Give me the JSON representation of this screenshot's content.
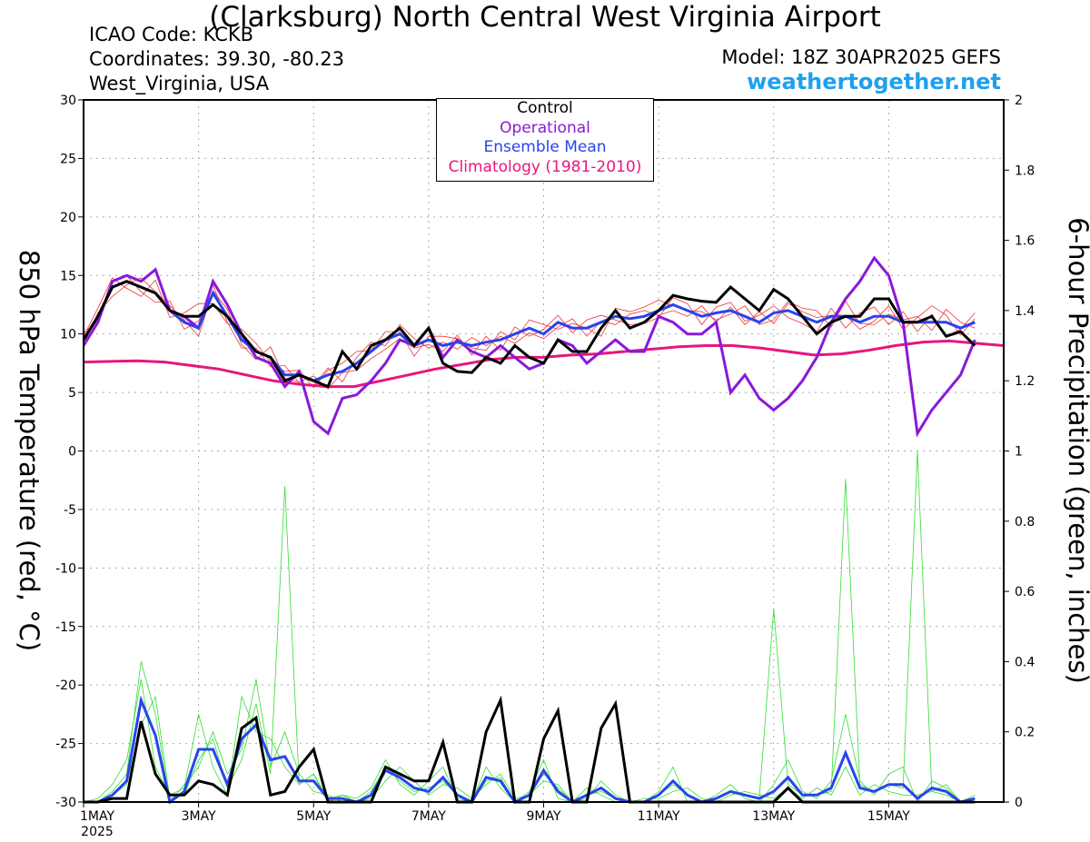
{
  "header": {
    "title": "(Clarksburg) North Central West Virginia Airport",
    "icao": "ICAO Code: KCKB",
    "coordinates": "Coordinates: 39.30, -80.23",
    "region": "West_Virginia, USA",
    "model": "Model: 18Z 30APR2025 GEFS",
    "brand": "weathertogether.net"
  },
  "colors": {
    "members_temp": "#ee3333",
    "members_precip": "#33dd33",
    "control": "#000000",
    "operational": "#8a18d8",
    "ensemble_mean": "#2844ee",
    "climatology": "#e8157e",
    "brand": "#1ea0ee"
  },
  "chart_data": {
    "type": "line",
    "xlabel": "",
    "ylabel": "850 hPa Temperature (red, °C)",
    "y2label": "6-hour Precipitation (green, inches)",
    "ylim": [
      -30,
      30
    ],
    "y2lim": [
      0,
      2
    ],
    "yticks": [
      "30",
      "25",
      "20",
      "15",
      "10",
      "5",
      "0",
      "-5",
      "-10",
      "-15",
      "-20",
      "-25",
      "-30"
    ],
    "y2ticks": [
      "2",
      "1.8",
      "1.6",
      "1.4",
      "1.2",
      "1",
      "0.8",
      "0.6",
      "0.4",
      "0.2",
      "0"
    ],
    "x_start_day": 1,
    "x_end_day": 17,
    "x_step_hours": 6,
    "xtick_labels": [
      "1MAY",
      "3MAY",
      "5MAY",
      "7MAY",
      "9MAY",
      "11MAY",
      "13MAY",
      "15MAY"
    ],
    "xtick_days": [
      1,
      3,
      5,
      7,
      9,
      11,
      13,
      15
    ],
    "x_year_label": "2025",
    "grid": true,
    "legend_placement": "top-center",
    "legend": [
      "Control",
      "Operational",
      "Ensemble Mean",
      "Climatology (1981-2010)"
    ],
    "series": [
      {
        "name": "Control",
        "axis": "temp",
        "values": [
          9.5,
          11.5,
          14.0,
          14.5,
          14.0,
          13.5,
          12.0,
          11.5,
          11.5,
          12.5,
          11.5,
          10.0,
          8.5,
          8.0,
          6.0,
          6.5,
          6.0,
          5.5,
          8.5,
          7.0,
          9.0,
          9.5,
          10.5,
          9.0,
          10.5,
          7.5,
          6.8,
          6.7,
          8.0,
          7.5,
          9.0,
          8.0,
          7.5,
          9.5,
          8.5,
          8.5,
          10.5,
          12.0,
          10.5,
          11.0,
          12.0,
          13.3,
          13.0,
          12.8,
          12.7,
          14.0,
          13.0,
          12.0,
          13.8,
          13.0,
          11.5,
          10.0,
          11.0,
          11.5,
          11.5,
          13.0,
          13.0,
          11.0,
          11.0,
          11.5,
          9.8,
          10.2,
          9.0
        ]
      },
      {
        "name": "Operational",
        "axis": "temp",
        "values": [
          9.0,
          11.0,
          14.5,
          15.0,
          14.5,
          15.5,
          12.0,
          11.5,
          10.5,
          14.5,
          12.5,
          10.0,
          8.0,
          7.5,
          5.5,
          6.8,
          2.5,
          1.5,
          4.5,
          4.8,
          6.0,
          7.5,
          9.5,
          9.0,
          10.5,
          8.0,
          9.5,
          8.5,
          8.0,
          9.0,
          8.0,
          7.0,
          7.5,
          9.5,
          9.0,
          7.5,
          8.5,
          9.5,
          8.5,
          8.5,
          11.5,
          11.0,
          10.0,
          10.0,
          11.0,
          5.0,
          6.5,
          4.5,
          3.5,
          4.5,
          6.0,
          8.0,
          11.0,
          13.0,
          14.5,
          16.5,
          15.0,
          11.0,
          1.5,
          3.5,
          5.0,
          6.5,
          9.5
        ]
      },
      {
        "name": "Ensemble Mean",
        "axis": "temp",
        "values": [
          9.5,
          11.5,
          14.0,
          14.5,
          14.0,
          13.5,
          12.0,
          11.0,
          10.5,
          13.5,
          11.5,
          9.5,
          8.5,
          8.0,
          6.5,
          6.5,
          6.0,
          6.5,
          6.8,
          7.5,
          8.5,
          9.5,
          10.0,
          9.0,
          9.5,
          9.0,
          9.3,
          9.0,
          9.3,
          9.5,
          10.0,
          10.5,
          10.0,
          11.0,
          10.5,
          10.5,
          11.0,
          11.5,
          11.3,
          11.5,
          12.0,
          12.5,
          12.0,
          11.5,
          11.8,
          12.0,
          11.5,
          11.0,
          11.8,
          12.0,
          11.5,
          11.0,
          11.5,
          11.5,
          11.0,
          11.5,
          11.5,
          11.0,
          11.0,
          11.0,
          11.0,
          10.5,
          11.0
        ]
      },
      {
        "name": "Climatology (1981-2010)",
        "axis": "temp",
        "values": [
          7.6,
          7.65,
          7.7,
          7.6,
          7.3,
          7.0,
          6.5,
          6.0,
          5.7,
          5.5,
          5.5,
          6.0,
          6.5,
          7.0,
          7.4,
          7.8,
          8.0,
          8.0,
          8.2,
          8.3,
          8.5,
          8.7,
          8.9,
          9.0,
          9.0,
          8.8,
          8.5,
          8.2,
          8.3,
          8.6,
          9.0,
          9.3,
          9.4,
          9.2,
          9.0
        ]
      },
      {
        "name": "Control Precip",
        "axis": "precip",
        "values": [
          0.0,
          0.0,
          0.01,
          0.01,
          0.23,
          0.08,
          0.02,
          0.02,
          0.06,
          0.05,
          0.02,
          0.21,
          0.24,
          0.02,
          0.03,
          0.1,
          0.15,
          0.0,
          0.0,
          0.0,
          0.0,
          0.1,
          0.08,
          0.06,
          0.06,
          0.17,
          0.0,
          0.0,
          0.2,
          0.29,
          0.0,
          0.0,
          0.18,
          0.26,
          0.0,
          0.0,
          0.21,
          0.28,
          0.0,
          0.0,
          0.0,
          0.0,
          0.0,
          0.0,
          0.0,
          0.0,
          0.0,
          0.0,
          0.0,
          0.04,
          0.0,
          0.0,
          0.0,
          0.0,
          0.0,
          0.0,
          0.0,
          0.0,
          0.0,
          0.0,
          0.0,
          0.0,
          0.0
        ]
      },
      {
        "name": "Ensemble Mean Precip",
        "axis": "precip",
        "values": [
          0.0,
          0.0,
          0.02,
          0.06,
          0.29,
          0.19,
          0.0,
          0.03,
          0.15,
          0.15,
          0.05,
          0.18,
          0.22,
          0.12,
          0.13,
          0.06,
          0.06,
          0.01,
          0.01,
          0.0,
          0.02,
          0.09,
          0.07,
          0.04,
          0.03,
          0.07,
          0.02,
          0.0,
          0.07,
          0.06,
          0.0,
          0.02,
          0.09,
          0.03,
          0.0,
          0.02,
          0.04,
          0.01,
          0.0,
          0.0,
          0.02,
          0.06,
          0.02,
          0.0,
          0.01,
          0.03,
          0.02,
          0.01,
          0.03,
          0.07,
          0.02,
          0.02,
          0.04,
          0.14,
          0.04,
          0.03,
          0.05,
          0.05,
          0.01,
          0.04,
          0.03,
          0.0,
          0.01
        ]
      },
      {
        "name": "Member Temp",
        "axis": "temp",
        "members": [
          [
            9.8,
            12.2,
            14.8,
            13.9,
            13.2,
            14.6,
            11.4,
            11.8,
            12.6,
            12.6,
            10.9,
            10.4,
            9.2,
            7.6,
            6.8,
            6.9,
            5.4,
            6.9,
            7.5,
            8.5,
            8.6,
            10.2,
            10.2,
            8.1,
            9.8,
            9.8,
            9.6,
            8.8,
            8.6,
            10.2,
            9.5,
            11.2,
            10.8,
            10.4,
            10.9,
            10.5,
            9.8,
            12.2,
            11.9,
            12.3,
            12.9,
            12.4,
            12.0,
            11.9,
            11.2,
            11.7,
            12.4,
            10.8,
            11.2,
            12.8,
            12.2,
            12.0,
            10.6,
            12.8,
            10.9,
            10.8,
            11.7,
            11.2,
            11.5,
            10.3,
            12.1,
            11.0,
            10.5
          ],
          [
            9.1,
            11.8,
            13.2,
            14.2,
            14.8,
            13.6,
            12.4,
            11.2,
            9.8,
            13.7,
            12.1,
            9.1,
            7.8,
            8.9,
            6.2,
            5.9,
            6.4,
            5.3,
            6.7,
            6.9,
            7.9,
            8.7,
            9.6,
            8.8,
            9.1,
            8.5,
            9.9,
            8.2,
            9.8,
            8.6,
            10.6,
            9.8,
            10.4,
            11.6,
            10.1,
            11.2,
            11.6,
            11.2,
            10.8,
            10.9,
            11.4,
            13.1,
            12.6,
            10.8,
            12.3,
            12.7,
            11.1,
            11.6,
            12.4,
            11.4,
            10.9,
            10.2,
            12.2,
            10.5,
            11.8,
            12.3,
            10.8,
            11.9,
            10.2,
            11.7,
            9.8,
            10.4,
            11.8
          ],
          [
            10.1,
            11.1,
            14.4,
            15.0,
            13.6,
            12.7,
            12.8,
            10.4,
            11.1,
            14.2,
            11.0,
            8.8,
            8.8,
            7.2,
            7.3,
            5.8,
            5.6,
            7.1,
            5.9,
            8.0,
            9.3,
            9.0,
            10.8,
            9.6,
            8.8,
            9.3,
            8.7,
            9.7,
            9.0,
            9.8,
            9.2,
            10.1,
            9.6,
            10.6,
            11.3,
            9.8,
            11.1,
            10.8,
            11.7,
            12.0,
            11.6,
            12.0,
            11.5,
            12.4,
            11.0,
            12.3,
            10.8,
            11.9,
            10.9,
            12.6,
            11.9,
            11.4,
            11.6,
            11.6,
            10.4,
            11.1,
            12.4,
            10.4,
            11.4,
            12.4,
            11.6,
            9.9,
            11.3
          ]
        ]
      },
      {
        "name": "Member Precip",
        "axis": "precip",
        "members": [
          [
            0.0,
            0.01,
            0.05,
            0.12,
            0.35,
            0.1,
            0.02,
            0.04,
            0.25,
            0.1,
            0.02,
            0.3,
            0.2,
            0.18,
            0.1,
            0.05,
            0.08,
            0.0,
            0.02,
            0.01,
            0.04,
            0.12,
            0.05,
            0.02,
            0.06,
            0.1,
            0.01,
            0.0,
            0.1,
            0.04,
            0.0,
            0.03,
            0.12,
            0.01,
            0.0,
            0.04,
            0.02,
            0.0,
            0.0,
            0.0,
            0.03,
            0.1,
            0.0,
            0.0,
            0.02,
            0.05,
            0.01,
            0.0,
            0.05,
            0.12,
            0.03,
            0.01,
            0.06,
            0.25,
            0.06,
            0.02,
            0.08,
            0.1,
            0.0,
            0.06,
            0.04,
            0.0,
            0.02
          ],
          [
            0.0,
            0.0,
            0.03,
            0.08,
            0.4,
            0.25,
            0.0,
            0.05,
            0.1,
            0.2,
            0.08,
            0.15,
            0.35,
            0.1,
            0.2,
            0.08,
            0.03,
            0.02,
            0.0,
            0.0,
            0.01,
            0.06,
            0.1,
            0.06,
            0.02,
            0.05,
            0.04,
            0.01,
            0.05,
            0.08,
            0.01,
            0.02,
            0.06,
            0.05,
            0.0,
            0.01,
            0.06,
            0.02,
            0.0,
            0.01,
            0.01,
            0.03,
            0.04,
            0.01,
            0.0,
            0.02,
            0.03,
            0.02,
            0.01,
            0.04,
            0.01,
            0.04,
            0.02,
            0.1,
            0.02,
            0.05,
            0.03,
            0.02,
            0.02,
            0.03,
            0.05,
            0.0,
            0.0
          ],
          [
            0.0,
            0.0,
            0.02,
            0.05,
            0.22,
            0.3,
            0.01,
            0.02,
            0.12,
            0.18,
            0.04,
            0.12,
            0.28,
            0.08,
            0.9,
            0.05,
            0.08,
            0.01,
            0.02,
            0.0,
            0.03,
            0.1,
            0.06,
            0.03,
            0.04,
            0.06,
            0.02,
            0.0,
            0.06,
            0.07,
            0.0,
            0.02,
            0.08,
            0.04,
            0.0,
            0.02,
            0.03,
            0.01,
            0.0,
            0.0,
            0.02,
            0.05,
            0.02,
            0.0,
            0.01,
            0.03,
            0.02,
            0.01,
            0.55,
            0.05,
            0.02,
            0.02,
            0.03,
            0.92,
            0.05,
            0.03,
            0.05,
            0.04,
            1.0,
            0.03,
            0.02,
            0.0,
            0.01
          ]
        ]
      }
    ]
  }
}
